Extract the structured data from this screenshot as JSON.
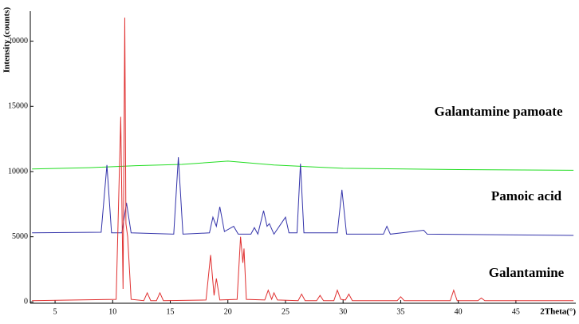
{
  "chart_data": {
    "type": "line",
    "y_label": "Intensity (counts)",
    "x_label": "2Theta(°)",
    "annotations": [
      "Galantamine pamoate",
      "Pamoic acid",
      "Galantamine"
    ],
    "xlim": [
      2.85,
      50.2
    ],
    "ylim": [
      -100,
      22300
    ],
    "xticks": [
      5,
      10,
      15,
      20,
      25,
      30,
      35,
      40,
      45
    ],
    "yticks": [
      0,
      5000,
      10000,
      15000,
      20000
    ],
    "series": [
      {
        "name": "Galantamine pamoate",
        "color": "#22dd22",
        "x": [
          3,
          8,
          12,
          16,
          20,
          24,
          30,
          40,
          50
        ],
        "values": [
          10200,
          10300,
          10450,
          10550,
          10800,
          10500,
          10250,
          10150,
          10100
        ]
      },
      {
        "name": "Pamoic acid",
        "color": "#3333aa",
        "x": [
          3,
          9,
          9.5,
          9.9,
          10.8,
          11.2,
          11.6,
          15.3,
          15.7,
          16.1,
          18.4,
          18.7,
          19,
          19.3,
          19.7,
          20.5,
          20.9,
          22,
          22.3,
          22.6,
          23.1,
          23.4,
          23.6,
          24,
          25,
          25.3,
          26,
          26.3,
          26.6,
          29.5,
          29.9,
          30.3,
          33.5,
          33.8,
          34.1,
          37,
          37.3,
          50
        ],
        "values": [
          5300,
          5350,
          10500,
          5300,
          5300,
          7600,
          5300,
          5200,
          11100,
          5200,
          5300,
          6500,
          5800,
          7300,
          5400,
          5800,
          5200,
          5200,
          5700,
          5200,
          7000,
          5800,
          6000,
          5200,
          6500,
          5300,
          5300,
          10600,
          5300,
          5300,
          8600,
          5200,
          5200,
          5800,
          5200,
          5500,
          5200,
          5100
        ]
      },
      {
        "name": "Galantamine",
        "color": "#e03030",
        "x": [
          3,
          10.3,
          10.7,
          10.9,
          11.05,
          11.15,
          11.3,
          11.6,
          12.7,
          13,
          13.3,
          13.8,
          14.1,
          14.4,
          18.1,
          18.5,
          18.8,
          19,
          19.3,
          20.8,
          21.1,
          21.3,
          21.4,
          21.6,
          23.2,
          23.5,
          23.8,
          24,
          24.3,
          26.1,
          26.4,
          26.7,
          27.7,
          28,
          28.3,
          29.2,
          29.5,
          29.8,
          30.2,
          30.5,
          30.8,
          34.7,
          35,
          35.3,
          39.3,
          39.6,
          39.9,
          41.7,
          42,
          42.3,
          50
        ],
        "values": [
          100,
          200,
          14200,
          1000,
          21800,
          6000,
          5000,
          200,
          100,
          700,
          100,
          100,
          700,
          100,
          150,
          3600,
          500,
          1800,
          150,
          200,
          5000,
          3000,
          4100,
          200,
          150,
          900,
          200,
          700,
          150,
          100,
          600,
          100,
          100,
          500,
          100,
          100,
          900,
          200,
          150,
          600,
          100,
          100,
          400,
          100,
          100,
          900,
          100,
          100,
          300,
          100,
          100
        ]
      }
    ]
  }
}
